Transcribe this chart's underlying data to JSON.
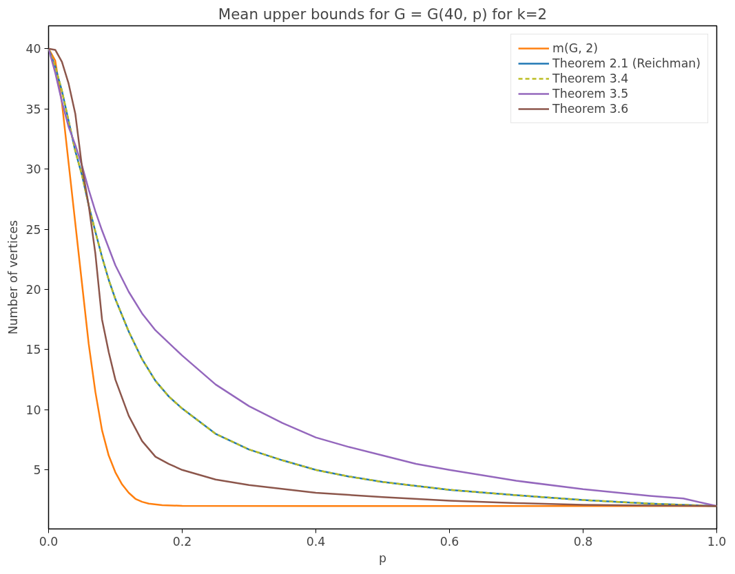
{
  "chart_data": {
    "type": "line",
    "title": "Mean upper bounds for G = G(40, p) for k=2",
    "xlabel": "p",
    "ylabel": "Number of vertices",
    "xlim": [
      0,
      1
    ],
    "ylim": [
      0.1,
      41.9
    ],
    "xticks": [
      {
        "value": 0,
        "label": "0.0"
      },
      0.2,
      0.4,
      0.6,
      0.8,
      {
        "value": 1,
        "label": "1.0"
      }
    ],
    "yticks": [
      5,
      10,
      15,
      20,
      25,
      30,
      35,
      40
    ],
    "grid": false,
    "legend": "top right",
    "marker": "none",
    "series": [
      {
        "name": "m(G, 2)",
        "color": "#ff7f0e",
        "line_style": "solid",
        "x": [
          0,
          0.01,
          0.02,
          0.03,
          0.04,
          0.05,
          0.06,
          0.07,
          0.08,
          0.09,
          0.1,
          0.11,
          0.12,
          0.13,
          0.14,
          0.15,
          0.17,
          0.2,
          0.4,
          0.6,
          0.8,
          1.0
        ],
        "values": [
          40,
          39,
          35.5,
          30.5,
          25.5,
          20.5,
          15.5,
          11.5,
          8.3,
          6.2,
          4.8,
          3.8,
          3.1,
          2.6,
          2.35,
          2.2,
          2.07,
          2.02,
          2,
          2,
          2,
          2
        ]
      },
      {
        "name": "Theorem 2.1 (Reichman)",
        "color": "#1f77b4",
        "line_style": "solid",
        "x": [
          0,
          0.01,
          0.02,
          0.03,
          0.04,
          0.05,
          0.06,
          0.07,
          0.08,
          0.09,
          0.1,
          0.12,
          0.14,
          0.16,
          0.18,
          0.2,
          0.25,
          0.3,
          0.35,
          0.4,
          0.45,
          0.5,
          0.6,
          0.7,
          0.8,
          0.9,
          1.0
        ],
        "values": [
          40,
          38.5,
          36.5,
          34,
          31.5,
          29.5,
          27,
          24.8,
          22.7,
          20.8,
          19.2,
          16.5,
          14.2,
          12.4,
          11.1,
          10.1,
          8,
          6.7,
          5.8,
          5,
          4.45,
          4,
          3.35,
          2.9,
          2.5,
          2.2,
          2
        ]
      },
      {
        "name": "Theorem 3.4",
        "color": "#bcbd22",
        "line_style": "dashed",
        "x": [
          0,
          0.01,
          0.02,
          0.03,
          0.04,
          0.05,
          0.06,
          0.07,
          0.08,
          0.09,
          0.1,
          0.12,
          0.14,
          0.16,
          0.18,
          0.2,
          0.25,
          0.3,
          0.35,
          0.4,
          0.45,
          0.5,
          0.6,
          0.7,
          0.8,
          0.9,
          1.0
        ],
        "values": [
          40,
          38.5,
          36.5,
          34,
          31.5,
          29.5,
          27,
          24.8,
          22.7,
          20.8,
          19.2,
          16.5,
          14.2,
          12.4,
          11.1,
          10.1,
          8,
          6.7,
          5.8,
          5,
          4.45,
          4,
          3.35,
          2.9,
          2.5,
          2.2,
          2
        ]
      },
      {
        "name": "Theorem 3.5",
        "color": "#9467bd",
        "line_style": "solid",
        "x": [
          0,
          0.01,
          0.02,
          0.03,
          0.04,
          0.05,
          0.06,
          0.07,
          0.08,
          0.1,
          0.12,
          0.14,
          0.16,
          0.2,
          0.25,
          0.3,
          0.35,
          0.4,
          0.45,
          0.5,
          0.55,
          0.6,
          0.7,
          0.8,
          0.9,
          0.95,
          1.0
        ],
        "values": [
          40,
          38,
          35.6,
          33.5,
          32,
          30.3,
          28.3,
          26.5,
          24.9,
          22,
          19.8,
          18,
          16.6,
          14.5,
          12.1,
          10.3,
          8.9,
          7.7,
          6.9,
          6.2,
          5.5,
          5,
          4.1,
          3.4,
          2.85,
          2.63,
          2
        ]
      },
      {
        "name": "Theorem 3.6",
        "color": "#8c564b",
        "line_style": "solid",
        "x": [
          0,
          0.01,
          0.02,
          0.03,
          0.04,
          0.05,
          0.06,
          0.07,
          0.08,
          0.09,
          0.1,
          0.12,
          0.14,
          0.16,
          0.18,
          0.2,
          0.25,
          0.3,
          0.4,
          0.5,
          0.6,
          0.7,
          0.8,
          0.9,
          1.0
        ],
        "values": [
          40,
          39.9,
          38.9,
          37.1,
          34.6,
          30.2,
          27,
          23,
          17.5,
          14.8,
          12.5,
          9.5,
          7.4,
          6.1,
          5.5,
          5,
          4.2,
          3.75,
          3.1,
          2.75,
          2.45,
          2.25,
          2.1,
          2.05,
          2
        ]
      }
    ]
  }
}
